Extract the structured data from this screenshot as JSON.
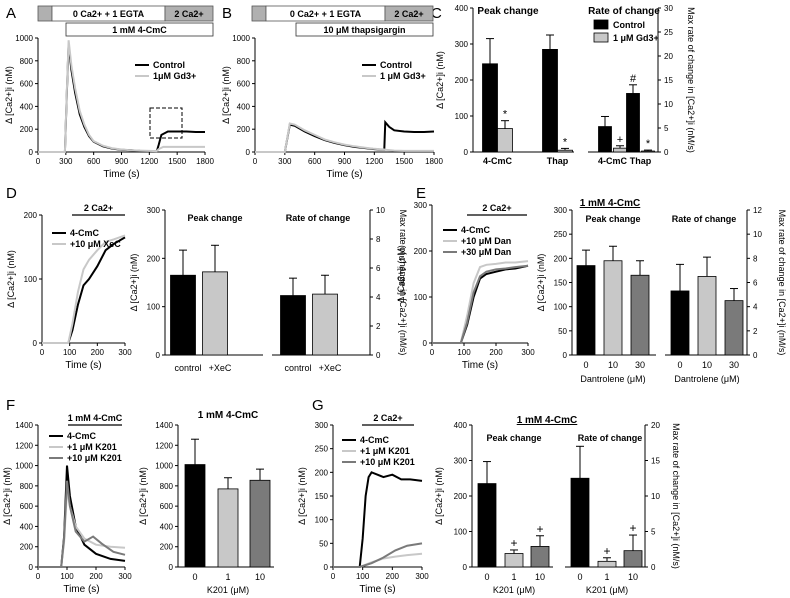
{
  "figure": {
    "panel_labels": [
      "A",
      "B",
      "C",
      "D",
      "E",
      "F",
      "G"
    ]
  },
  "colors": {
    "black": "#000000",
    "gray": "#c8c8c8",
    "dgray": "#7a7a7a",
    "bar_hdr": "#b0b0b0"
  },
  "chart_data": [
    {
      "id": "A",
      "type": "line",
      "protocol": {
        "pre": "",
        "main": "0 Ca2+ + 1 EGTA",
        "post": "2 Ca2+",
        "drug": "1 mM 4-CmC"
      },
      "xlabel": "Time (s)",
      "ylabel": "Δ [Ca2+]i (nM)",
      "xlim": [
        0,
        1800
      ],
      "ylim": [
        0,
        1000
      ],
      "xticks": [
        0,
        300,
        600,
        900,
        1200,
        1500,
        1800
      ],
      "yticks": [
        0,
        200,
        400,
        600,
        800,
        1000
      ],
      "legend": [
        "Control",
        "1μM Gd3+"
      ],
      "series": [
        {
          "name": "Control",
          "color": "black",
          "x": [
            0,
            290,
            310,
            330,
            360,
            400,
            450,
            500,
            550,
            600,
            700,
            800,
            900,
            1000,
            1100,
            1200,
            1280,
            1300,
            1330,
            1400,
            1500,
            1600,
            1700,
            1800
          ],
          "y": [
            0,
            0,
            500,
            950,
            720,
            520,
            330,
            220,
            140,
            90,
            50,
            30,
            20,
            15,
            10,
            8,
            5,
            60,
            150,
            180,
            180,
            180,
            175,
            175
          ]
        },
        {
          "name": "1μM Gd3+",
          "color": "gray",
          "x": [
            0,
            290,
            310,
            330,
            360,
            400,
            450,
            500,
            550,
            600,
            700,
            800,
            900,
            1000,
            1100,
            1200,
            1280,
            1300,
            1350,
            1400,
            1500,
            1600,
            1700,
            1800
          ],
          "y": [
            0,
            0,
            520,
            980,
            760,
            560,
            360,
            240,
            150,
            95,
            55,
            33,
            22,
            15,
            12,
            10,
            8,
            25,
            45,
            45,
            45,
            45,
            45,
            45
          ]
        }
      ]
    },
    {
      "id": "B",
      "type": "line",
      "protocol": {
        "pre": "",
        "main": "0 Ca2+ + 1 EGTA",
        "post": "2 Ca2+",
        "drug": "10 μM thapsigargin"
      },
      "xlabel": "Time (s)",
      "ylabel": "Δ [Ca2+]i (nM)",
      "xlim": [
        0,
        1800
      ],
      "ylim": [
        0,
        1000
      ],
      "xticks": [
        0,
        300,
        600,
        900,
        1200,
        1500,
        1800
      ],
      "yticks": [
        0,
        200,
        400,
        600,
        800,
        1000
      ],
      "legend": [
        "Control",
        "1 μM Gd3+"
      ],
      "series": [
        {
          "name": "Control",
          "color": "black",
          "x": [
            0,
            300,
            350,
            400,
            500,
            600,
            700,
            800,
            900,
            1000,
            1100,
            1200,
            1300,
            1310,
            1350,
            1400,
            1500,
            1600,
            1700,
            1800
          ],
          "y": [
            0,
            0,
            240,
            230,
            180,
            140,
            105,
            80,
            60,
            45,
            35,
            25,
            20,
            260,
            220,
            190,
            180,
            175,
            175,
            180
          ]
        },
        {
          "name": "1 μM Gd3+",
          "color": "gray",
          "x": [
            0,
            300,
            350,
            400,
            500,
            600,
            700,
            800,
            900,
            1000,
            1100,
            1200,
            1300,
            1310,
            1400,
            1500,
            1600,
            1700,
            1800
          ],
          "y": [
            0,
            0,
            250,
            240,
            190,
            150,
            110,
            85,
            65,
            50,
            38,
            28,
            22,
            20,
            12,
            10,
            10,
            10,
            10
          ]
        }
      ]
    },
    {
      "id": "C",
      "type": "bar",
      "groups": [
        {
          "title": "Peak change",
          "categories": [
            "4-CmC",
            "Thap"
          ],
          "series": [
            {
              "name": "Control",
              "values": [
                245,
                285
              ],
              "errors": [
                70,
                40
              ]
            },
            {
              "name": "1 μM Gd3+",
              "values": [
                65,
                5
              ],
              "errors": [
                22,
                5
              ]
            }
          ]
        },
        {
          "title": "Rate of change",
          "categories": [
            "4-CmC",
            "Thap"
          ],
          "series": [
            {
              "name": "Control",
              "values": [
                5.3,
                12.2
              ],
              "errors": [
                2.1,
                1.8
              ]
            },
            {
              "name": "1 μM Gd3+",
              "values": [
                0.8,
                0.2
              ],
              "errors": [
                0.5,
                0.2
              ]
            }
          ]
        }
      ],
      "annotations": [
        "*",
        "*",
        "+",
        "#",
        "*"
      ],
      "ylabel": "Δ [Ca2+]i (nM)",
      "ylim": [
        0,
        400
      ],
      "yticks": [
        0,
        100,
        200,
        300,
        400
      ],
      "y2label": "Max rate of change in [Ca2+]i (nM/s)",
      "y2lim": [
        0,
        30
      ],
      "y2ticks": [
        0,
        5,
        10,
        15,
        20,
        25,
        30
      ],
      "legend": [
        "Control",
        "1 μM Gd3+"
      ]
    },
    {
      "id": "D1",
      "type": "line",
      "protocol": {
        "post": "2 Ca2+"
      },
      "xlabel": "Time (s)",
      "ylabel": "Δ [Ca2+]i (nM)",
      "xlim": [
        0,
        300
      ],
      "ylim": [
        0,
        200
      ],
      "xticks": [
        0,
        100,
        200,
        300
      ],
      "yticks": [
        0,
        100,
        200
      ],
      "legend": [
        "4-CmC",
        "+10 μM XeC"
      ],
      "series": [
        {
          "name": "4-CmC",
          "color": "black",
          "x": [
            0,
            95,
            110,
            130,
            150,
            170,
            200,
            230,
            260,
            300
          ],
          "y": [
            0,
            0,
            20,
            60,
            90,
            100,
            120,
            145,
            155,
            165
          ]
        },
        {
          "name": "+10 μM XeC",
          "color": "gray",
          "x": [
            0,
            95,
            110,
            130,
            150,
            170,
            200,
            230,
            260,
            300
          ],
          "y": [
            0,
            0,
            30,
            80,
            115,
            130,
            145,
            158,
            162,
            168
          ]
        }
      ]
    },
    {
      "id": "D2",
      "type": "bar",
      "groups": [
        {
          "title": "Peak change",
          "categories": [
            "control",
            "+XeC"
          ],
          "values": [
            165,
            172
          ],
          "errors": [
            52,
            55
          ],
          "colors": [
            "black",
            "gray"
          ]
        },
        {
          "title": "Rate of change",
          "categories": [
            "control",
            "+XeC"
          ],
          "values": [
            4.1,
            4.2
          ],
          "errors": [
            1.2,
            1.3
          ],
          "colors": [
            "black",
            "gray"
          ]
        }
      ],
      "ylabel": "Δ [Ca2+]i (nM)",
      "ylim": [
        0,
        300
      ],
      "yticks": [
        0,
        100,
        200,
        300
      ],
      "y2label": "Max rate of change in [Ca2+]i (nM/s)",
      "y2lim": [
        0,
        10
      ],
      "y2ticks": [
        0,
        2,
        4,
        6,
        8,
        10
      ]
    },
    {
      "id": "E1",
      "type": "line",
      "protocol": {
        "post": "2 Ca2+"
      },
      "xlabel": "Time (s)",
      "ylabel": "Δ [Ca2+]i (nM)",
      "xlim": [
        0,
        300
      ],
      "ylim": [
        0,
        300
      ],
      "xticks": [
        0,
        100,
        200,
        300
      ],
      "yticks": [
        0,
        100,
        200,
        300
      ],
      "legend": [
        "4-CmC",
        "+10 μM Dan",
        "+30 μM Dan"
      ],
      "series": [
        {
          "name": "4-CmC",
          "color": "black",
          "x": [
            0,
            90,
            110,
            130,
            150,
            170,
            200,
            230,
            260,
            300
          ],
          "y": [
            0,
            0,
            40,
            100,
            140,
            150,
            155,
            160,
            162,
            168
          ]
        },
        {
          "name": "+10 μM Dan",
          "color": "gray",
          "x": [
            0,
            90,
            110,
            130,
            150,
            170,
            200,
            230,
            260,
            300
          ],
          "y": [
            0,
            0,
            60,
            130,
            165,
            170,
            172,
            175,
            175,
            178
          ]
        },
        {
          "name": "+30 μM Dan",
          "color": "dgray",
          "x": [
            0,
            90,
            110,
            130,
            150,
            170,
            200,
            230,
            260,
            300
          ],
          "y": [
            0,
            0,
            45,
            110,
            145,
            155,
            160,
            162,
            165,
            168
          ]
        }
      ]
    },
    {
      "id": "E2",
      "type": "bar",
      "title": "1 mM 4-CmC",
      "groups": [
        {
          "title": "Peak change",
          "categories": [
            "0",
            "10",
            "30"
          ],
          "values": [
            185,
            195,
            165
          ],
          "errors": [
            32,
            30,
            30
          ],
          "colors": [
            "black",
            "gray",
            "dgray"
          ],
          "xlabel": "Dantrolene (μM)"
        },
        {
          "title": "Rate of change",
          "categories": [
            "0",
            "10",
            "30"
          ],
          "values": [
            5.3,
            6.5,
            4.5
          ],
          "errors": [
            2.2,
            1.6,
            1.0
          ],
          "colors": [
            "black",
            "gray",
            "dgray"
          ],
          "xlabel": "Dantrolene (μM)"
        }
      ],
      "ylabel": "Δ [Ca2+]i (nM)",
      "ylim": [
        0,
        300
      ],
      "yticks": [
        0,
        50,
        100,
        150,
        200,
        250,
        300
      ],
      "y2label": "Max rate of change in [Ca2+]i (nM/s)",
      "y2lim": [
        0,
        12
      ],
      "y2ticks": [
        0,
        2,
        4,
        6,
        8,
        10,
        12
      ]
    },
    {
      "id": "F1",
      "type": "line",
      "protocol": {
        "post": "1 mM 4-CmC"
      },
      "xlabel": "Time (s)",
      "ylabel": "Δ [Ca2+]i (nM)",
      "xlim": [
        0,
        300
      ],
      "ylim": [
        0,
        1400
      ],
      "xticks": [
        0,
        100,
        200,
        300
      ],
      "yticks": [
        0,
        200,
        400,
        600,
        800,
        1000,
        1200,
        1400
      ],
      "legend": [
        "4-CmC",
        "+1 μM K201",
        "+10 μM K201"
      ],
      "series": [
        {
          "name": "4-CmC",
          "color": "black",
          "x": [
            0,
            80,
            90,
            100,
            110,
            130,
            160,
            200,
            250,
            300
          ],
          "y": [
            0,
            0,
            300,
            1000,
            700,
            400,
            220,
            130,
            80,
            60
          ]
        },
        {
          "name": "+1 μM K201",
          "color": "gray",
          "x": [
            0,
            80,
            90,
            100,
            110,
            130,
            160,
            200,
            250,
            300
          ],
          "y": [
            0,
            0,
            250,
            760,
            600,
            400,
            280,
            220,
            200,
            190
          ]
        },
        {
          "name": "+10 μM K201",
          "color": "dgray",
          "x": [
            0,
            80,
            90,
            100,
            110,
            130,
            160,
            190,
            220,
            260,
            300
          ],
          "y": [
            0,
            0,
            280,
            850,
            600,
            350,
            250,
            300,
            230,
            150,
            120
          ]
        }
      ]
    },
    {
      "id": "F2",
      "type": "bar",
      "title": "1 mM 4-CmC",
      "categories": [
        "0",
        "1",
        "10"
      ],
      "values": [
        1010,
        770,
        855
      ],
      "errors": [
        250,
        110,
        110
      ],
      "colors": [
        "black",
        "gray",
        "dgray"
      ],
      "xlabel": "K201 (μM)",
      "ylabel": "Δ [Ca2+]i (nM)",
      "ylim": [
        0,
        1400
      ],
      "yticks": [
        0,
        200,
        400,
        600,
        800,
        1000,
        1200,
        1400
      ]
    },
    {
      "id": "G1",
      "type": "line",
      "protocol": {
        "post": "2 Ca2+"
      },
      "xlabel": "Time (s)",
      "ylabel": "Δ [Ca2+]i (nM)",
      "xlim": [
        0,
        300
      ],
      "ylim": [
        0,
        300
      ],
      "xticks": [
        0,
        100,
        200,
        300
      ],
      "yticks": [
        0,
        50,
        100,
        150,
        200,
        250,
        300
      ],
      "legend": [
        "4-CmC",
        "+1 μM K201",
        "+10 μM K201"
      ],
      "series": [
        {
          "name": "4-CmC",
          "color": "black",
          "x": [
            0,
            90,
            100,
            110,
            120,
            130,
            150,
            170,
            200,
            230,
            260,
            300
          ],
          "y": [
            0,
            0,
            60,
            150,
            190,
            200,
            195,
            190,
            195,
            185,
            185,
            182
          ]
        },
        {
          "name": "+1 μM K201",
          "color": "gray",
          "x": [
            0,
            90,
            130,
            170,
            210,
            250,
            300
          ],
          "y": [
            0,
            0,
            10,
            18,
            22,
            25,
            28
          ]
        },
        {
          "name": "+10 μM K201",
          "color": "dgray",
          "x": [
            0,
            90,
            130,
            170,
            210,
            250,
            300
          ],
          "y": [
            0,
            0,
            8,
            20,
            35,
            45,
            50
          ]
        }
      ]
    },
    {
      "id": "G2",
      "type": "bar",
      "title": "1 mM 4-CmC",
      "groups": [
        {
          "title": "Peak change",
          "categories": [
            "0",
            "1",
            "10"
          ],
          "values": [
            235,
            38,
            58
          ],
          "errors": [
            62,
            10,
            30
          ],
          "colors": [
            "black",
            "gray",
            "dgray"
          ],
          "xlabel": "K201 (μM)"
        },
        {
          "title": "Rate of change",
          "categories": [
            "0",
            "1",
            "10"
          ],
          "values": [
            12.5,
            0.8,
            2.3
          ],
          "errors": [
            4.5,
            0.5,
            2.2
          ],
          "colors": [
            "black",
            "gray",
            "dgray"
          ],
          "xlabel": "K201 (μM)"
        }
      ],
      "annotations": [
        "+",
        "+",
        "+",
        "+"
      ],
      "ylabel": "Δ [Ca2+]i (nM)",
      "ylim": [
        0,
        400
      ],
      "yticks": [
        0,
        100,
        200,
        300,
        400
      ],
      "y2label": "Max rate of change in [Ca2+]i (nM/s)",
      "y2lim": [
        0,
        20
      ],
      "y2ticks": [
        0,
        5,
        10,
        15,
        20
      ]
    }
  ]
}
